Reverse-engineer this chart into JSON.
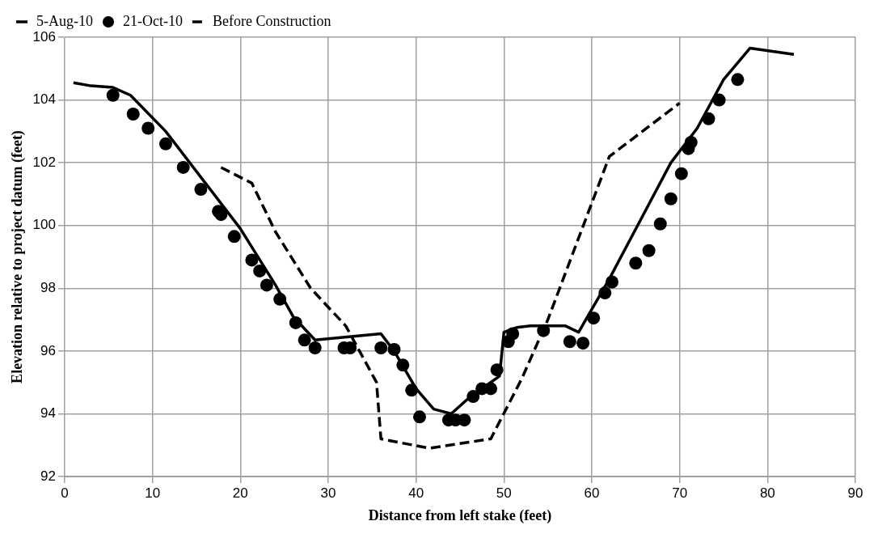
{
  "chart_data": {
    "type": "line",
    "xlabel": "Distance from left stake (feet)",
    "ylabel": "Elevation relative to project datum (feet)",
    "xlim": [
      0,
      90
    ],
    "xticks": [
      0,
      10,
      20,
      30,
      40,
      50,
      60,
      70,
      80,
      90
    ],
    "ylim": [
      92,
      106
    ],
    "yticks": [
      92,
      94,
      96,
      98,
      100,
      102,
      104,
      106
    ],
    "grid": true,
    "legend": "top",
    "series": [
      {
        "name": "5-Aug-10",
        "color": "#000000",
        "type": "line",
        "line_style": "solid",
        "marker": "none",
        "x": [
          1,
          3,
          5.5,
          7.5,
          11.5,
          20,
          24,
          26,
          28.5,
          36,
          37.5,
          40,
          42,
          44,
          46,
          48,
          49.5,
          50,
          51.5,
          53,
          57,
          58.5,
          62,
          69,
          72,
          75,
          78,
          83
        ],
        "values": [
          104.55,
          104.45,
          104.4,
          104.15,
          103.0,
          99.9,
          98.1,
          97.1,
          96.35,
          96.55,
          96.0,
          94.8,
          94.15,
          94.0,
          94.5,
          94.9,
          95.2,
          96.6,
          96.75,
          96.8,
          96.8,
          96.6,
          98.3,
          102.0,
          103.1,
          104.65,
          105.65,
          105.45
        ]
      },
      {
        "name": "21-Oct-10",
        "color": "#000000",
        "type": "scatter",
        "marker": "circle",
        "x": [
          5.5,
          7.8,
          9.5,
          11.5,
          13.5,
          15.5,
          17.5,
          17.8,
          19.3,
          21.3,
          22.2,
          23,
          24.5,
          26.3,
          27.3,
          28.5,
          31.8,
          32.5,
          36,
          37.5,
          38.5,
          39.5,
          40.4,
          43.7,
          44.5,
          45.5,
          46.5,
          47.5,
          48.5,
          49.2,
          50.5,
          51,
          54.5,
          57.5,
          59,
          60.2,
          61.5,
          62.3,
          65,
          66.5,
          67.8,
          69,
          70.2,
          71,
          71.3,
          73.3,
          74.5,
          76.6
        ],
        "values": [
          104.15,
          103.55,
          103.1,
          102.6,
          101.85,
          101.15,
          100.45,
          100.35,
          99.65,
          98.9,
          98.55,
          98.1,
          97.65,
          96.9,
          96.35,
          96.1,
          96.1,
          96.1,
          96.1,
          96.05,
          95.55,
          94.75,
          93.9,
          93.8,
          93.8,
          93.8,
          94.55,
          94.8,
          94.8,
          95.4,
          96.3,
          96.55,
          96.65,
          96.3,
          96.25,
          97.05,
          97.85,
          98.2,
          98.8,
          99.2,
          100.05,
          100.85,
          101.65,
          102.45,
          102.65,
          103.4,
          104.0,
          104.65
        ]
      },
      {
        "name": "Before Construction",
        "color": "#000000",
        "type": "line",
        "line_style": "dashed",
        "marker": "none",
        "x": [
          17.8,
          21.3,
          24,
          28,
          32,
          35.5,
          36,
          41.5,
          48.5,
          52,
          55,
          58.5,
          62,
          70
        ],
        "values": [
          101.85,
          101.35,
          99.8,
          98.0,
          96.8,
          95.0,
          93.2,
          92.9,
          93.2,
          95.1,
          97.0,
          99.6,
          102.2,
          103.9
        ]
      }
    ]
  }
}
